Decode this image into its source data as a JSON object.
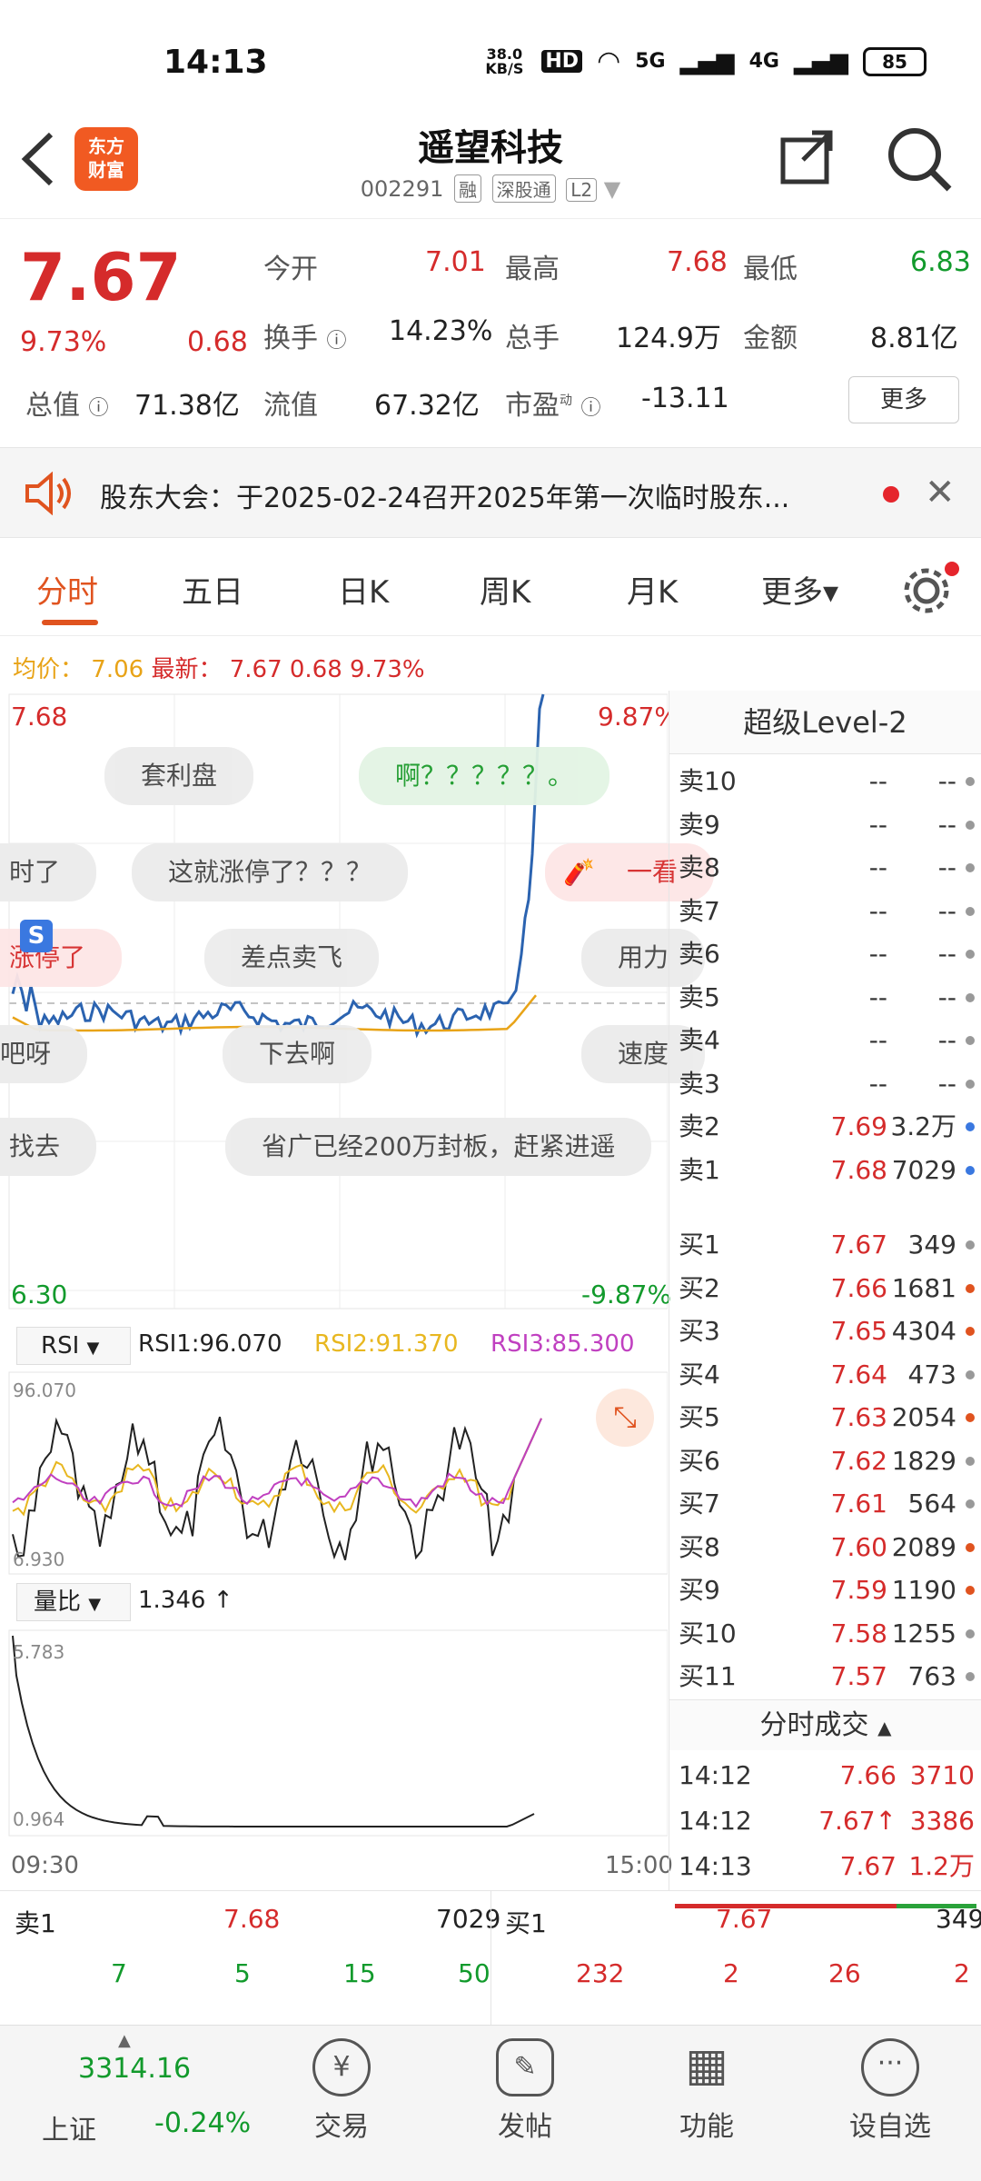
{
  "status": {
    "time": "14:13",
    "net_speed": "38.0 KB/S",
    "hd": "HD",
    "net1": "5G",
    "net2": "4G",
    "battery": "85"
  },
  "header": {
    "logo_line1": "东方",
    "logo_line2": "财富",
    "title": "遥望科技",
    "code": "002291",
    "tags": [
      "融",
      "深股通",
      "L2"
    ]
  },
  "quote": {
    "price": "7.67",
    "change_pct": "9.73%",
    "change": "0.68",
    "open_label": "今开",
    "open": "7.01",
    "high_label": "最高",
    "high": "7.68",
    "low_label": "最低",
    "low": "6.83",
    "turnover_label": "换手",
    "turnover": "14.23%",
    "volume_label": "总手",
    "volume": "124.9万",
    "amount_label": "金额",
    "amount": "8.81亿",
    "mcap_label": "总值",
    "mcap": "71.38亿",
    "float_label": "流值",
    "float": "67.32亿",
    "pe_label": "市盈",
    "pe_sup": "动",
    "pe": "-13.11",
    "more": "更多"
  },
  "notice": {
    "text": "股东大会：于2025-02-24召开2025年第一次临时股东..."
  },
  "tabs": [
    {
      "label": "分时"
    },
    {
      "label": "五日"
    },
    {
      "label": "日K"
    },
    {
      "label": "周K"
    },
    {
      "label": "月K"
    },
    {
      "label": "更多▾"
    }
  ],
  "avg": {
    "avg_label": "均价：",
    "avg": "7.06",
    "latest_label": "最新：",
    "latest": "7.67",
    "chg": "0.68",
    "pct": "9.73%"
  },
  "chart": {
    "top_left": "7.68",
    "top_right": "9.87%",
    "bottom_left": "6.30",
    "bottom_right": "-9.87%",
    "rsi_selector": "RSI",
    "rsi1": "RSI1:96.070",
    "rsi2": "RSI2:91.370",
    "rsi3": "RSI3:85.300",
    "rsi_top": "96.070",
    "rsi_bottom": "6.930",
    "vr_selector": "量比",
    "vr_value": "1.346 ↑",
    "vr_top": "5.783",
    "vr_bottom": "0.964",
    "time_start": "09:30",
    "time_end": "15:00",
    "comments": [
      "套利盘",
      "啊？？？？？。",
      "这就涨停了？？？",
      "一看",
      "差点卖飞",
      "用力",
      "下去啊",
      "速度",
      "省广已经200万封板，赶紧进遥",
      "找去",
      "涨停了",
      "吧呀",
      "时了"
    ],
    "colors": {
      "price": "#2b63b0",
      "avg": "#e8a317",
      "rsi1": "#222222",
      "rsi2": "#e8b720",
      "rsi3": "#c040c0"
    }
  },
  "level2": {
    "title": "超级Level-2",
    "asks": [
      {
        "label": "卖10",
        "price": "--",
        "vol": "--"
      },
      {
        "label": "卖9",
        "price": "--",
        "vol": "--"
      },
      {
        "label": "卖8",
        "price": "--",
        "vol": "--"
      },
      {
        "label": "卖7",
        "price": "--",
        "vol": "--"
      },
      {
        "label": "卖6",
        "price": "--",
        "vol": "--"
      },
      {
        "label": "卖5",
        "price": "--",
        "vol": "--"
      },
      {
        "label": "卖4",
        "price": "--",
        "vol": "--"
      },
      {
        "label": "卖3",
        "price": "--",
        "vol": "--"
      },
      {
        "label": "卖2",
        "price": "7.69",
        "vol": "3.2万"
      },
      {
        "label": "卖1",
        "price": "7.68",
        "vol": "7029"
      }
    ],
    "bids": [
      {
        "label": "买1",
        "price": "7.67",
        "vol": "349"
      },
      {
        "label": "买2",
        "price": "7.66",
        "vol": "1681"
      },
      {
        "label": "买3",
        "price": "7.65",
        "vol": "4304"
      },
      {
        "label": "买4",
        "price": "7.64",
        "vol": "473"
      },
      {
        "label": "买5",
        "price": "7.63",
        "vol": "2054"
      },
      {
        "label": "买6",
        "price": "7.62",
        "vol": "1829"
      },
      {
        "label": "买7",
        "price": "7.61",
        "vol": "564"
      },
      {
        "label": "买8",
        "price": "7.60",
        "vol": "2089"
      },
      {
        "label": "买9",
        "price": "7.59",
        "vol": "1190"
      },
      {
        "label": "买10",
        "price": "7.58",
        "vol": "1255"
      },
      {
        "label": "买11",
        "price": "7.57",
        "vol": "763"
      }
    ],
    "trades_title": "分时成交",
    "trades": [
      {
        "time": "14:12",
        "price": "7.66",
        "vol": "3710"
      },
      {
        "time": "14:12",
        "price": "7.67↑",
        "vol": "3386"
      },
      {
        "time": "14:13",
        "price": "7.67",
        "vol": "1.2万"
      }
    ]
  },
  "book": {
    "ask1_label": "卖1",
    "ask1_price": "7.68",
    "ask1_vol": "7029",
    "bid1_label": "买1",
    "bid1_price": "7.67",
    "bid1_vol": "349",
    "ask_queue": [
      "7",
      "5",
      "15",
      "50"
    ],
    "bid_queue": [
      "232",
      "2",
      "26",
      "2"
    ]
  },
  "nav": {
    "index_value": "3314.16",
    "index_name": "上证",
    "index_chg": "-0.24%",
    "items": [
      {
        "label": "交易",
        "icon": "¥"
      },
      {
        "label": "发帖",
        "icon": "✎"
      },
      {
        "label": "功能",
        "icon": "▦"
      },
      {
        "label": "设自选",
        "icon": "···"
      }
    ]
  }
}
